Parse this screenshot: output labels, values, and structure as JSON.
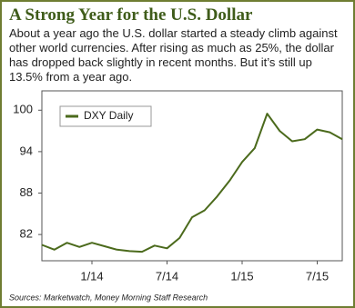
{
  "chart_data": {
    "type": "line",
    "title": "A Strong Year for the U.S. Dollar",
    "subtitle": "About a year ago the U.S. dollar started a steady climb against other world currencies. After rising as much as 25%, the dollar has dropped back slightly in recent months. But it’s still up 13.5% from a year ago.",
    "source": "Sources: Marketwatch, Money Morning Staff Research",
    "x": [
      "2013-09",
      "2013-10",
      "2013-11",
      "2013-12",
      "2014-01",
      "2014-02",
      "2014-03",
      "2014-04",
      "2014-05",
      "2014-06",
      "2014-07",
      "2014-08",
      "2014-09",
      "2014-10",
      "2014-11",
      "2014-12",
      "2015-01",
      "2015-02",
      "2015-03",
      "2015-04",
      "2015-05",
      "2015-06",
      "2015-07",
      "2015-08",
      "2015-09"
    ],
    "series": [
      {
        "name": "DXY Daily",
        "color": "#4b6a1c",
        "values": [
          80.5,
          79.8,
          80.8,
          80.2,
          80.8,
          80.3,
          79.8,
          79.6,
          79.5,
          80.4,
          80.0,
          81.5,
          84.5,
          85.5,
          87.5,
          89.8,
          92.5,
          94.5,
          99.5,
          97.0,
          95.5,
          95.8,
          97.2,
          96.8,
          95.8
        ]
      }
    ],
    "xlim": [
      "2013-09",
      "2015-09"
    ],
    "xticks": [
      {
        "value": "2014-01",
        "label": "1/14"
      },
      {
        "value": "2014-07",
        "label": "7/14"
      },
      {
        "value": "2015-01",
        "label": "1/15"
      },
      {
        "value": "2015-07",
        "label": "7/15"
      }
    ],
    "ylim": [
      78.2,
      102.8
    ],
    "yticks": [
      82,
      88,
      94,
      100
    ],
    "legend": "upper left"
  }
}
